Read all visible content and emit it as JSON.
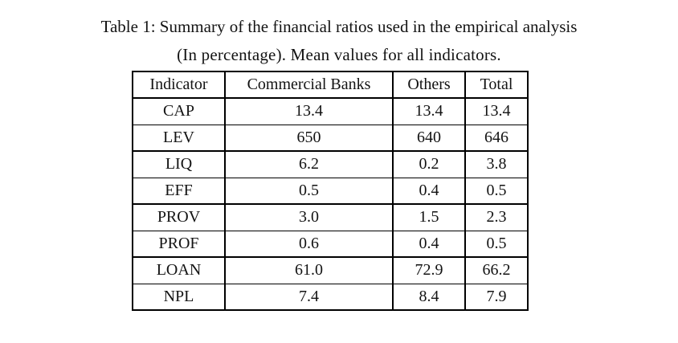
{
  "page": {
    "background_color": "#ffffff",
    "text_color": "#131313",
    "rule_color": "#000000"
  },
  "caption": {
    "line1": "Table 1: Summary of the financial ratios used in the empirical analysis",
    "line2": "(In percentage). Mean values for all indicators."
  },
  "table": {
    "columns": [
      "Indicator",
      "Commercial Banks",
      "Others",
      "Total"
    ],
    "rows": [
      [
        "CAP",
        "13.4",
        "13.4",
        "13.4"
      ],
      [
        "LEV",
        "650",
        "640",
        "646"
      ],
      [
        "LIQ",
        "6.2",
        "0.2",
        "3.8"
      ],
      [
        "EFF",
        "0.5",
        "0.4",
        "0.5"
      ],
      [
        "PROV",
        "3.0",
        "1.5",
        "2.3"
      ],
      [
        "PROF",
        "0.6",
        "0.4",
        "0.5"
      ],
      [
        "LOAN",
        "61.0",
        "72.9",
        "66.2"
      ],
      [
        "NPL",
        "7.4",
        "8.4",
        "7.9"
      ]
    ]
  }
}
